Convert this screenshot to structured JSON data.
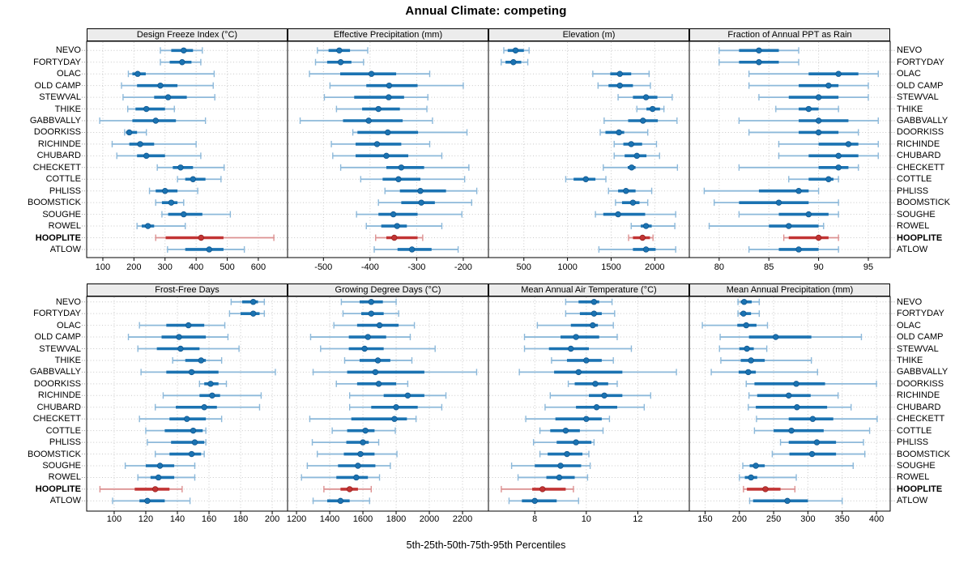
{
  "title": "Annual Climate: competing",
  "caption": "5th-25th-50th-75th-95th Percentiles",
  "percentile_labels": [
    "5th",
    "25th",
    "50th",
    "75th",
    "95th"
  ],
  "sites": [
    "NEVO",
    "FORTYDAY",
    "OLAC",
    "OLD CAMP",
    "STEWVAL",
    "THIKE",
    "GABBVALLY",
    "DOORKISS",
    "RICHINDE",
    "CHUBARD",
    "CHECKETT",
    "COTTLE",
    "PHLISS",
    "BOOMSTICK",
    "SOUGHE",
    "ROWEL",
    "HOOPLITE",
    "ATLOW"
  ],
  "highlight_site": "HOOPLITE",
  "colors": {
    "blue": "#1b73b2",
    "blue_light": "#8db9da",
    "blue_dark": "#10578f",
    "red": "#c23434",
    "red_light": "#dc9090",
    "red_dark": "#99221f",
    "grid": "#c8c8c8",
    "strip_bg": "#ececec",
    "outer_tick": "#9b9b9b",
    "border": "#000000"
  },
  "chart_data": [
    {
      "type": "dot-range",
      "key": "design-freeze-index",
      "title": "Design Freeze Index (°C)",
      "row": 0,
      "col": 0,
      "xlim": [
        48,
        694
      ],
      "ticks": [
        100,
        200,
        300,
        400,
        500,
        600
      ],
      "values": [
        [
          285,
          320,
          360,
          390,
          420
        ],
        [
          285,
          315,
          355,
          385,
          415
        ],
        [
          182,
          195,
          212,
          238,
          458
        ],
        [
          160,
          210,
          285,
          340,
          455
        ],
        [
          165,
          265,
          310,
          370,
          460
        ],
        [
          180,
          205,
          240,
          300,
          330
        ],
        [
          90,
          195,
          270,
          335,
          430
        ],
        [
          170,
          175,
          185,
          210,
          240
        ],
        [
          130,
          185,
          220,
          265,
          400
        ],
        [
          145,
          210,
          240,
          300,
          415
        ],
        [
          275,
          325,
          350,
          390,
          490
        ],
        [
          340,
          365,
          390,
          430,
          480
        ],
        [
          250,
          270,
          300,
          340,
          405
        ],
        [
          270,
          290,
          320,
          340,
          360
        ],
        [
          290,
          310,
          360,
          420,
          510
        ],
        [
          210,
          225,
          245,
          265,
          365
        ],
        [
          270,
          302,
          416,
          488,
          650
        ],
        [
          308,
          365,
          442,
          488,
          555
        ]
      ]
    },
    {
      "type": "dot-range",
      "key": "effective-precipitation",
      "title": "Effective Precipitation (mm)",
      "row": 0,
      "col": 1,
      "xlim": [
        -577,
        -146
      ],
      "ticks": [
        -500,
        -400,
        -300,
        -200
      ],
      "values": [
        [
          -513,
          -489,
          -466,
          -443,
          -405
        ],
        [
          -517,
          -492,
          -463,
          -440,
          -414
        ],
        [
          -530,
          -464,
          -397,
          -344,
          -272
        ],
        [
          -486,
          -408,
          -359,
          -298,
          -200
        ],
        [
          -498,
          -434,
          -360,
          -327,
          -276
        ],
        [
          -472,
          -417,
          -382,
          -336,
          -278
        ],
        [
          -550,
          -458,
          -403,
          -330,
          -266
        ],
        [
          -437,
          -427,
          -362,
          -297,
          -192
        ],
        [
          -483,
          -431,
          -385,
          -333,
          -272
        ],
        [
          -480,
          -431,
          -365,
          -318,
          -246
        ],
        [
          -463,
          -365,
          -333,
          -284,
          -188
        ],
        [
          -420,
          -373,
          -339,
          -292,
          -197
        ],
        [
          -368,
          -336,
          -292,
          -237,
          -171
        ],
        [
          -382,
          -333,
          -290,
          -261,
          -182
        ],
        [
          -429,
          -382,
          -350,
          -298,
          -203
        ],
        [
          -408,
          -376,
          -342,
          -321,
          -246
        ],
        [
          -388,
          -365,
          -348,
          -298,
          -287
        ],
        [
          -391,
          -341,
          -310,
          -268,
          -211
        ]
      ]
    },
    {
      "type": "dot-range",
      "key": "elevation",
      "title": "Elevation (m)",
      "row": 0,
      "col": 2,
      "xlim": [
        94,
        2396
      ],
      "ticks": [
        500,
        1000,
        1500,
        2000
      ],
      "values": [
        [
          270,
          315,
          405,
          500,
          560
        ],
        [
          240,
          290,
          380,
          470,
          545
        ],
        [
          1290,
          1490,
          1600,
          1730,
          1935
        ],
        [
          1350,
          1470,
          1600,
          1750,
          1950
        ],
        [
          1580,
          1750,
          1900,
          2030,
          2200
        ],
        [
          1795,
          1905,
          1975,
          2060,
          2105
        ],
        [
          1420,
          1695,
          1865,
          2035,
          2255
        ],
        [
          1375,
          1435,
          1590,
          1650,
          1920
        ],
        [
          1535,
          1640,
          1730,
          1855,
          2020
        ],
        [
          1535,
          1655,
          1795,
          1905,
          2055
        ],
        [
          1410,
          1690,
          1735,
          1780,
          2260
        ],
        [
          980,
          1070,
          1210,
          1320,
          1440
        ],
        [
          1470,
          1580,
          1670,
          1780,
          1965
        ],
        [
          1550,
          1625,
          1750,
          1825,
          1920
        ],
        [
          1320,
          1410,
          1580,
          1890,
          2240
        ],
        [
          1730,
          1840,
          1900,
          1965,
          2230
        ],
        [
          1700,
          1750,
          1860,
          1945,
          1980
        ],
        [
          1360,
          1750,
          1900,
          2010,
          2240
        ]
      ]
    },
    {
      "type": "dot-range",
      "key": "fraction-ppt-rain",
      "title": "Fraction of Annual PPT as Rain",
      "row": 0,
      "col": 3,
      "xlim": [
        77,
        97.2
      ],
      "ticks": [
        80,
        85,
        90,
        95
      ],
      "values": [
        [
          80,
          82,
          84,
          86,
          88
        ],
        [
          80,
          82,
          84,
          86,
          88
        ],
        [
          83,
          89,
          92,
          94,
          96
        ],
        [
          83,
          88,
          91,
          92,
          95
        ],
        [
          84,
          87,
          90,
          92,
          95
        ],
        [
          85.7,
          88,
          89,
          90,
          92
        ],
        [
          82,
          88,
          90,
          93,
          96
        ],
        [
          83,
          88,
          90,
          92,
          94
        ],
        [
          86,
          90,
          93,
          94,
          96
        ],
        [
          86,
          89,
          92,
          94,
          96
        ],
        [
          82,
          90,
          92,
          93,
          94
        ],
        [
          87,
          89,
          91,
          91.5,
          92
        ],
        [
          78.5,
          84,
          88,
          89,
          90
        ],
        [
          79.5,
          82,
          86,
          89,
          92
        ],
        [
          82,
          86,
          89,
          91,
          92
        ],
        [
          79,
          85,
          87,
          90,
          90.5
        ],
        [
          86.5,
          87,
          90,
          91,
          92
        ],
        [
          83,
          86,
          88,
          90,
          92
        ]
      ]
    },
    {
      "type": "dot-range",
      "key": "frost-free-days",
      "title": "Frost-Free Days",
      "row": 1,
      "col": 0,
      "xlim": [
        82.6,
        209.7
      ],
      "ticks": [
        100,
        120,
        140,
        160,
        180,
        200
      ],
      "values": [
        [
          174,
          181,
          188,
          191,
          195
        ],
        [
          173,
          180,
          188,
          192,
          195
        ],
        [
          116,
          133,
          147,
          157,
          170
        ],
        [
          109,
          130,
          141,
          158,
          172
        ],
        [
          115,
          127,
          142,
          154,
          179
        ],
        [
          137,
          145,
          155,
          158,
          168
        ],
        [
          117,
          133,
          149,
          166,
          202
        ],
        [
          154,
          157,
          161,
          166,
          171
        ],
        [
          131,
          154,
          162,
          167,
          193
        ],
        [
          126,
          139,
          157,
          165,
          192
        ],
        [
          116,
          135,
          146,
          158,
          168
        ],
        [
          120,
          132,
          150,
          156,
          158
        ],
        [
          121,
          136,
          151,
          157,
          158
        ],
        [
          126,
          135,
          149,
          155,
          157
        ],
        [
          107,
          120,
          129,
          138,
          151
        ],
        [
          115,
          123,
          128,
          138,
          151
        ],
        [
          91,
          113,
          126,
          135,
          143
        ],
        [
          99,
          116,
          121,
          132,
          148
        ]
      ]
    },
    {
      "type": "dot-range",
      "key": "growing-degree-days",
      "title": "Growing Degree Days (°C)",
      "row": 1,
      "col": 1,
      "xlim": [
        1146,
        2356
      ],
      "ticks": [
        1200,
        1400,
        1600,
        1800,
        2000,
        2200
      ],
      "values": [
        [
          1470,
          1580,
          1650,
          1720,
          1800
        ],
        [
          1480,
          1590,
          1650,
          1725,
          1815
        ],
        [
          1425,
          1565,
          1700,
          1815,
          1910
        ],
        [
          1285,
          1515,
          1630,
          1740,
          1885
        ],
        [
          1345,
          1515,
          1610,
          1725,
          2035
        ],
        [
          1490,
          1580,
          1690,
          1765,
          1895
        ],
        [
          1300,
          1505,
          1675,
          1970,
          2285
        ],
        [
          1440,
          1565,
          1695,
          1800,
          1870
        ],
        [
          1520,
          1725,
          1870,
          1970,
          2100
        ],
        [
          1520,
          1650,
          1800,
          1930,
          2075
        ],
        [
          1280,
          1530,
          1790,
          1865,
          1920
        ],
        [
          1415,
          1505,
          1615,
          1670,
          1795
        ],
        [
          1295,
          1500,
          1600,
          1635,
          1695
        ],
        [
          1325,
          1485,
          1585,
          1670,
          1805
        ],
        [
          1265,
          1450,
          1570,
          1675,
          1765
        ],
        [
          1230,
          1440,
          1560,
          1630,
          1700
        ],
        [
          1365,
          1465,
          1520,
          1570,
          1650
        ],
        [
          1300,
          1385,
          1465,
          1520,
          1640
        ]
      ]
    },
    {
      "type": "dot-range",
      "key": "mean-annual-air-temperature",
      "title": "Mean Annual Air Temperature (°C)",
      "row": 1,
      "col": 2,
      "xlim": [
        6.2,
        14.0
      ],
      "ticks": [
        8,
        10,
        12
      ],
      "values": [
        [
          9.2,
          9.7,
          10.3,
          10.5,
          11.0
        ],
        [
          9.2,
          9.75,
          10.3,
          10.6,
          11.1
        ],
        [
          8.1,
          9.4,
          10.25,
          10.45,
          11.05
        ],
        [
          7.6,
          9.0,
          9.6,
          10.5,
          11.2
        ],
        [
          7.6,
          8.55,
          9.4,
          10.1,
          11.75
        ],
        [
          8.65,
          9.25,
          10.0,
          10.6,
          11.05
        ],
        [
          7.4,
          8.75,
          9.7,
          11.4,
          13.5
        ],
        [
          9.3,
          9.55,
          10.35,
          10.85,
          11.2
        ],
        [
          8.6,
          10.1,
          10.7,
          11.4,
          12.5
        ],
        [
          8.4,
          9.6,
          10.4,
          11.2,
          12.25
        ],
        [
          7.65,
          8.8,
          10.0,
          10.6,
          10.9
        ],
        [
          8.2,
          8.6,
          9.2,
          9.75,
          10.65
        ],
        [
          7.95,
          8.85,
          9.6,
          10.2,
          10.3
        ],
        [
          8.2,
          8.5,
          9.25,
          9.85,
          10.1
        ],
        [
          7.1,
          8.0,
          9.0,
          9.8,
          10.15
        ],
        [
          7.35,
          8.45,
          8.95,
          9.55,
          10.05
        ],
        [
          6.7,
          7.9,
          8.3,
          9.2,
          9.5
        ],
        [
          7.0,
          7.5,
          8.0,
          8.85,
          9.7
        ]
      ]
    },
    {
      "type": "dot-range",
      "key": "mean-annual-precipitation",
      "title": "Mean Annual Precipitation (mm)",
      "row": 1,
      "col": 3,
      "xlim": [
        127,
        420
      ],
      "ticks": [
        150,
        200,
        250,
        300,
        350,
        400
      ],
      "values": [
        [
          198,
          202,
          207,
          218,
          229
        ],
        [
          198,
          201,
          206,
          217,
          229
        ],
        [
          146,
          197,
          210,
          225,
          241
        ],
        [
          172,
          214,
          253,
          305,
          378
        ],
        [
          171,
          200,
          211,
          221,
          240
        ],
        [
          173,
          202,
          217,
          237,
          305
        ],
        [
          159,
          199,
          213,
          224,
          314
        ],
        [
          210,
          222,
          283,
          325,
          400
        ],
        [
          214,
          226,
          272,
          304,
          344
        ],
        [
          213,
          224,
          284,
          328,
          363
        ],
        [
          225,
          272,
          307,
          337,
          401
        ],
        [
          222,
          250,
          276,
          323,
          390
        ],
        [
          260,
          272,
          313,
          341,
          381
        ],
        [
          248,
          273,
          306,
          341,
          383
        ],
        [
          205,
          215,
          224,
          237,
          366
        ],
        [
          200,
          208,
          217,
          226,
          283
        ],
        [
          206,
          211,
          238,
          260,
          281
        ],
        [
          215,
          220,
          270,
          300,
          350
        ]
      ]
    }
  ]
}
